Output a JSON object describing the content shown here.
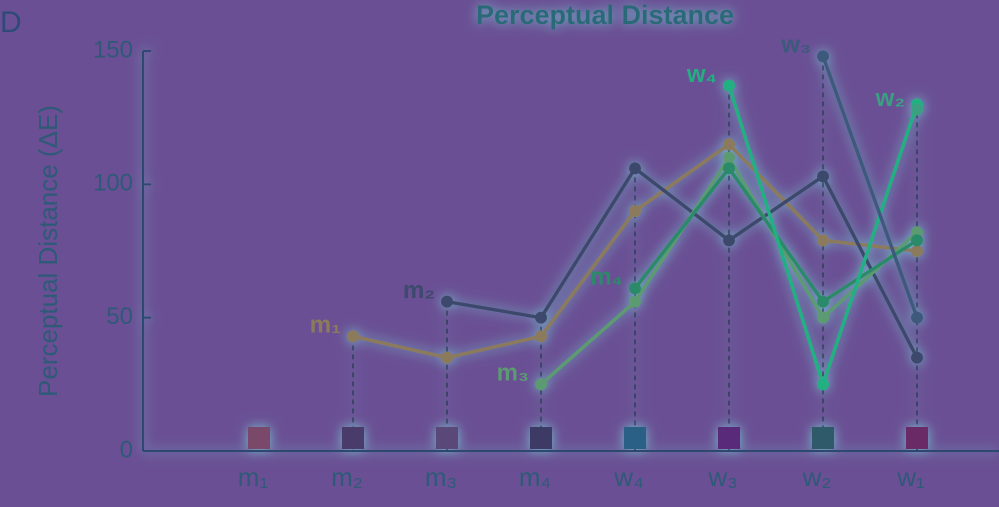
{
  "chart_data": {
    "type": "line",
    "panel_label": "D",
    "title": "Perceptual Distance",
    "y_label": "Perceptual Distance (ΔE)",
    "categories": [
      "m₁",
      "m₂",
      "m₃",
      "m₄",
      "w₄",
      "w₃",
      "w₂",
      "w₁"
    ],
    "category_colors": [
      "#7a4a6a",
      "#4a3a6a",
      "#5a4a78",
      "#3e3a66",
      "#2c5e86",
      "#5a2c7a",
      "#2e5a6a",
      "#6a2c66"
    ],
    "ylim": [
      0,
      150
    ],
    "yticks": [
      0,
      50,
      100,
      150
    ],
    "series": [
      {
        "name": "m₁",
        "color": "#8c7a5c",
        "values": [
          null,
          43,
          35,
          43,
          90,
          115,
          79,
          75
        ]
      },
      {
        "name": "m₂",
        "color": "#3c4a6c",
        "values": [
          null,
          null,
          56,
          50,
          106,
          79,
          103,
          35
        ]
      },
      {
        "name": "m₃",
        "color": "#5c9a72",
        "values": [
          null,
          null,
          null,
          25,
          56,
          110,
          50,
          82
        ]
      },
      {
        "name": "m₄",
        "color": "#2c8a6a",
        "values": [
          null,
          null,
          null,
          null,
          61,
          106,
          56,
          79
        ]
      },
      {
        "name": "w₄",
        "color": "#22b082",
        "values": [
          null,
          null,
          null,
          null,
          null,
          137,
          25,
          130
        ]
      },
      {
        "name": "w₃",
        "color": "#3c5a7c",
        "values": [
          null,
          null,
          null,
          null,
          null,
          null,
          148,
          50
        ]
      },
      {
        "name": "w₂",
        "color": "#3aa082",
        "values": [
          null,
          null,
          null,
          null,
          null,
          null,
          null,
          128
        ]
      }
    ]
  }
}
